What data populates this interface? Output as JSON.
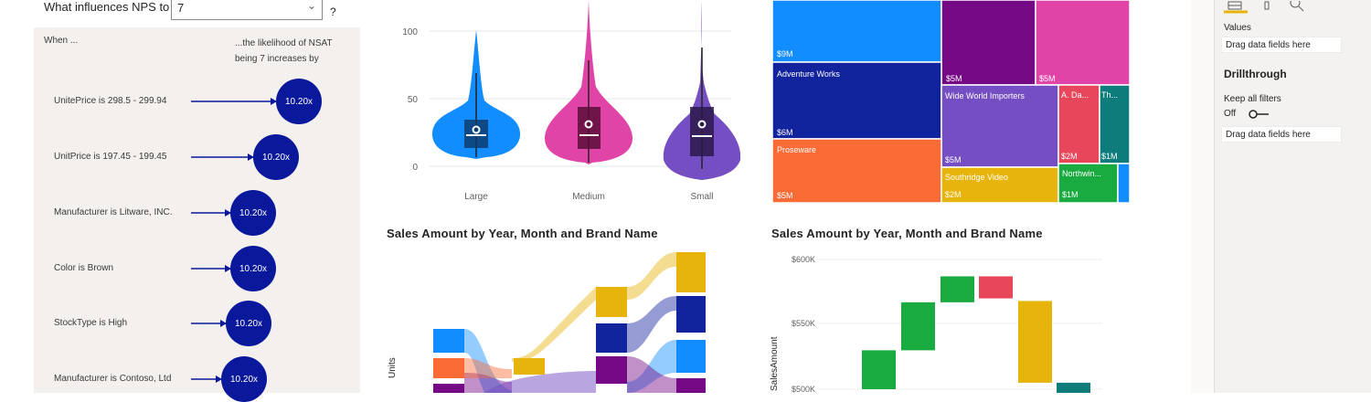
{
  "key_influencers": {
    "question_prefix": "What influences NPS to be",
    "selected_value": "7",
    "question_mark": "?",
    "when_header": "When ...",
    "likelihood_header": "...the likelihood of NSAT being 7 increases by",
    "items": [
      {
        "label": "UnitePrice is 298.5 - 299.94",
        "value": "10.20x"
      },
      {
        "label": "UnitPrice is 197.45 - 199.45",
        "value": "10.20x"
      },
      {
        "label": "Manufacturer is Litware, INC.",
        "value": "10.20x"
      },
      {
        "label": "Color is Brown",
        "value": "10.20x"
      },
      {
        "label": "StockType is High",
        "value": "10.20x"
      },
      {
        "label": "Manufacturer is Contoso, Ltd",
        "value": "10.20x"
      }
    ]
  },
  "violin": {
    "y_ticks": [
      "100",
      "50",
      "0"
    ],
    "categories": [
      "Large",
      "Medium",
      "Small"
    ]
  },
  "treemap": {
    "tiles": [
      {
        "label": "",
        "value": "$9M",
        "color": "#118dff"
      },
      {
        "label": "",
        "value": "$5M",
        "color": "#750985"
      },
      {
        "label": "",
        "value": "$5M",
        "color": "#e044a7"
      },
      {
        "label": "Adventure Works",
        "value": "$6M",
        "color": "#12239e"
      },
      {
        "label": "Wide World Importers",
        "value": "$5M",
        "color": "#744ec2"
      },
      {
        "label": "A. Da...",
        "value": "$2M",
        "color": "#e8465a"
      },
      {
        "label": "Th...",
        "value": "$1M",
        "color": "#0e7c7b"
      },
      {
        "label": "Proseware",
        "value": "$5M",
        "color": "#fa6b35"
      },
      {
        "label": "Southridge Video",
        "value": "$2M",
        "color": "#e6b40a"
      },
      {
        "label": "Northwin...",
        "value": "$1M",
        "color": "#1aab40"
      }
    ]
  },
  "ribbon_chart": {
    "title": "Sales Amount by Year, Month and Brand Name",
    "ylabel": "Units"
  },
  "waterfall": {
    "title": "Sales Amount by Year, Month and Brand Name",
    "ylabel": "SalesAmount",
    "y_ticks": [
      "$600K",
      "$550K",
      "$500K"
    ]
  },
  "pane": {
    "values_label": "Values",
    "drag_1": "Drag data fields here",
    "drillthrough": "Drillthrough",
    "keep_filters": "Keep all filters",
    "toggle_state": "Off",
    "drag_2": "Drag data fields here"
  },
  "chart_data": [
    {
      "type": "violin",
      "categories": [
        "Large",
        "Medium",
        "Small"
      ],
      "ylim": [
        0,
        100
      ],
      "y_ticks": [
        0,
        50,
        100
      ],
      "median": [
        23,
        23,
        22
      ],
      "q1": [
        13,
        13,
        7
      ],
      "q3": [
        34,
        44,
        44
      ],
      "mean": [
        27,
        31,
        31
      ],
      "colors": [
        "#118dff",
        "#e044a7",
        "#744ec2"
      ]
    },
    {
      "type": "treemap",
      "labels": [
        "",
        "",
        "",
        "Adventure Works",
        "Wide World Importers",
        "A. Da...",
        "Th...",
        "Proseware",
        "Southridge Video",
        "Northwin..."
      ],
      "values": [
        9,
        5,
        5,
        6,
        5,
        2,
        1,
        5,
        2,
        1
      ],
      "unit": "$M"
    },
    {
      "type": "area",
      "subtype": "ribbon",
      "title": "Sales Amount by Year, Month and Brand Name",
      "ylabel": "Units"
    },
    {
      "type": "bar",
      "subtype": "waterfall",
      "title": "Sales Amount by Year, Month and Brand Name",
      "ylabel": "SalesAmount",
      "y_ticks": [
        500000,
        550000,
        600000
      ],
      "bars": [
        {
          "start": 500000,
          "end": 530000,
          "color": "#1aab40"
        },
        {
          "start": 530000,
          "end": 567000,
          "color": "#1aab40"
        },
        {
          "start": 567000,
          "end": 587000,
          "color": "#1aab40"
        },
        {
          "start": 587000,
          "end": 570000,
          "color": "#e8465a"
        },
        {
          "start": 568000,
          "end": 505000,
          "color": "#e6b40a"
        },
        {
          "start": 505000,
          "end": 490000,
          "color": "#0e7c7b"
        }
      ]
    }
  ]
}
